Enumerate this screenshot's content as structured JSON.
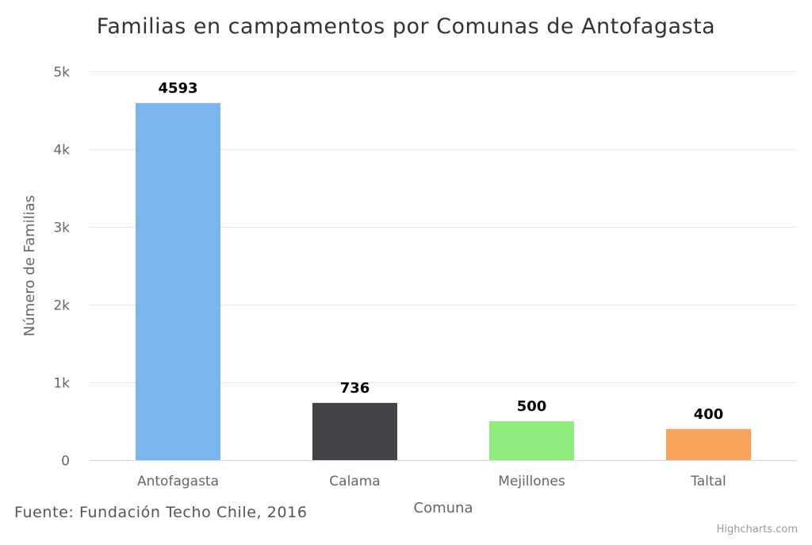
{
  "chart_data": {
    "type": "bar",
    "title": "Familias en campamentos por Comunas de Antofagasta",
    "xlabel": "Comuna",
    "ylabel": "Número de Familias",
    "categories": [
      "Antofagasta",
      "Calama",
      "Mejillones",
      "Taltal"
    ],
    "values": [
      4593,
      736,
      500,
      400
    ],
    "data_labels": [
      "4593",
      "736",
      "500",
      "400"
    ],
    "colors": [
      "#7cb5ec",
      "#434348",
      "#90ed7d",
      "#f7a35c"
    ],
    "ylim": [
      0,
      5000
    ],
    "yticks": [
      0,
      1000,
      2000,
      3000,
      4000,
      5000
    ],
    "ytick_labels": [
      "0",
      "1k",
      "2k",
      "3k",
      "4k",
      "5k"
    ],
    "grid": true,
    "legend": false
  },
  "source_note": "Fuente: Fundación Techo Chile, 2016",
  "credits": "Highcharts.com"
}
